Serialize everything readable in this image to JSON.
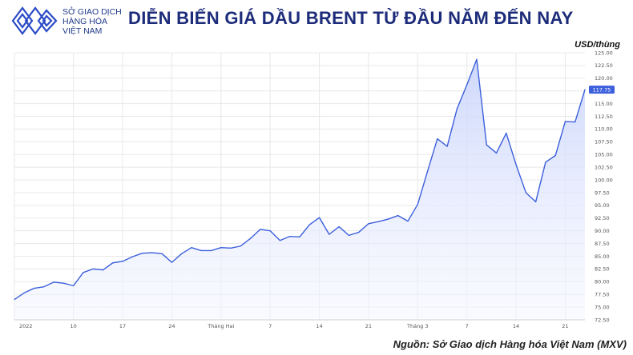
{
  "logo": {
    "icon": "diamond-stripes-logo",
    "line1": "SỞ GIAO DỊCH",
    "line2": "HÀNG HÓA",
    "line3": "VIỆT NAM",
    "color": "#2b4bc7"
  },
  "title": "DIỄN BIẾN GIÁ DẦU BRENT TỪ ĐẦU NĂM ĐẾN NAY",
  "unit_label": "USD/thùng",
  "source": "Nguồn: Sở Giao dịch Hàng hóa Việt Nam (MXV)",
  "colors": {
    "line": "#3c5fdc",
    "fill_top": "#c9d4fb",
    "fill_bottom": "#f4f6ff",
    "grid": "#e8e8e8",
    "title": "#1d2c7a",
    "last_value_bg": "#3c5fdc"
  },
  "chart_data": {
    "type": "area",
    "title": "DIỄN BIẾN GIÁ DẦU BRENT TỪ ĐẦU NĂM ĐẾN NAY",
    "ylabel": "USD/thùng",
    "xlabel": "",
    "ylim": [
      72.5,
      125
    ],
    "yticks": [
      "125.00",
      "122.50",
      "120.00",
      "117.50",
      "115.00",
      "112.50",
      "110.00",
      "107.50",
      "105.00",
      "102.50",
      "100.00",
      "97.50",
      "95.00",
      "92.50",
      "90.00",
      "87.50",
      "85.00",
      "82.50",
      "80.00",
      "77.50",
      "75.00",
      "72.50"
    ],
    "grid": true,
    "x_tick_labels": [
      {
        "label": "2022",
        "index": 0
      },
      {
        "label": "10",
        "index": 6
      },
      {
        "label": "17",
        "index": 11
      },
      {
        "label": "24",
        "index": 16
      },
      {
        "label": "Tháng Hai",
        "index": 21
      },
      {
        "label": "7",
        "index": 26
      },
      {
        "label": "14",
        "index": 31
      },
      {
        "label": "21",
        "index": 36
      },
      {
        "label": "Tháng 3",
        "index": 41
      },
      {
        "label": "7",
        "index": 46
      },
      {
        "label": "14",
        "index": 51
      },
      {
        "label": "21",
        "index": 56
      }
    ],
    "values": [
      76.5,
      77.8,
      78.7,
      79.0,
      79.9,
      79.7,
      79.2,
      81.8,
      82.5,
      82.3,
      83.7,
      84.0,
      84.9,
      85.6,
      85.7,
      85.5,
      83.8,
      85.5,
      86.7,
      86.1,
      86.1,
      86.7,
      86.6,
      87.0,
      88.5,
      90.3,
      90.0,
      88.1,
      88.9,
      88.8,
      91.2,
      92.6,
      89.3,
      90.8,
      89.1,
      89.7,
      91.4,
      91.8,
      92.3,
      93.0,
      91.9,
      95.2,
      101.7,
      108.1,
      106.6,
      114.0,
      118.7,
      123.7,
      106.9,
      105.3,
      109.2,
      103.0,
      97.5,
      95.7,
      103.5,
      104.8,
      111.5,
      111.4,
      117.75
    ],
    "last_value": "117.75"
  }
}
